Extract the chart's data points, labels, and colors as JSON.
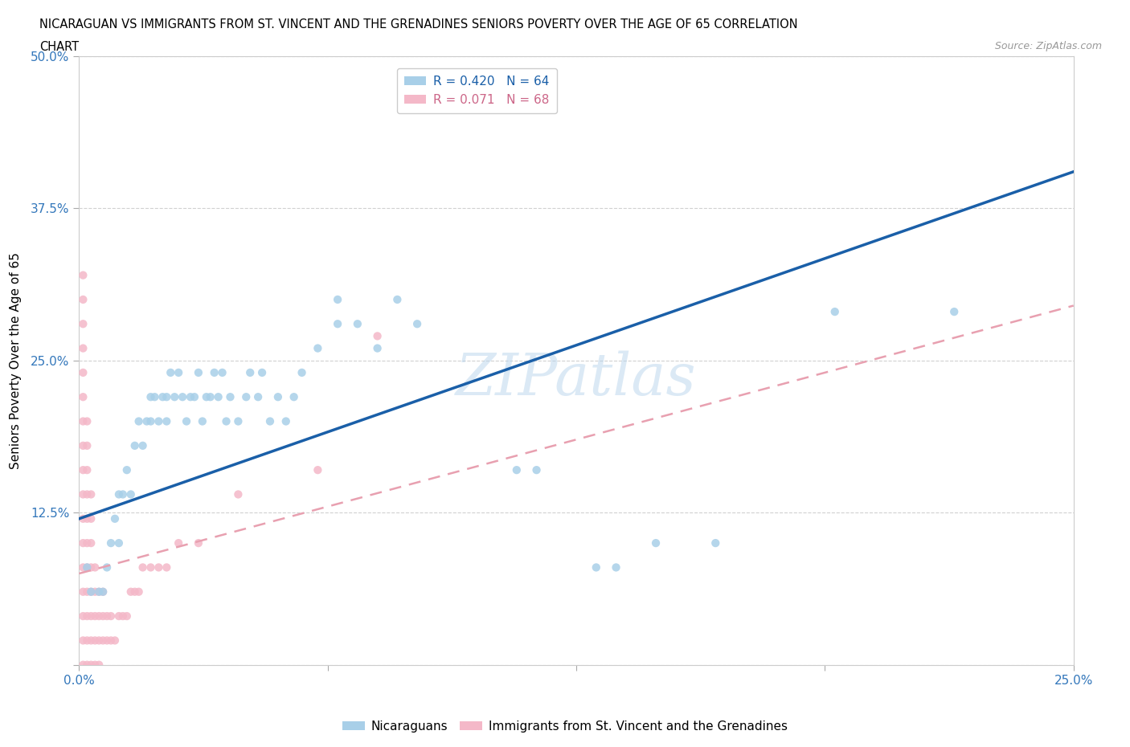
{
  "title_line1": "NICARAGUAN VS IMMIGRANTS FROM ST. VINCENT AND THE GRENADINES SENIORS POVERTY OVER THE AGE OF 65 CORRELATION",
  "title_line2": "CHART",
  "source": "Source: ZipAtlas.com",
  "ylabel": "Seniors Poverty Over the Age of 65",
  "xlim": [
    0.0,
    0.25
  ],
  "ylim": [
    0.0,
    0.5
  ],
  "xticks": [
    0.0,
    0.0625,
    0.125,
    0.1875,
    0.25
  ],
  "xticklabels": [
    "0.0%",
    "",
    "",
    "",
    "25.0%"
  ],
  "yticks": [
    0.0,
    0.125,
    0.25,
    0.375,
    0.5
  ],
  "yticklabels": [
    "",
    "12.5%",
    "25.0%",
    "37.5%",
    "50.0%"
  ],
  "blue_color": "#a8cfe8",
  "pink_color": "#f4b8c8",
  "blue_line_color": "#1a5fa8",
  "pink_line_color": "#e8a0b0",
  "R_blue": 0.42,
  "N_blue": 64,
  "R_pink": 0.071,
  "N_pink": 68,
  "legend_label_blue": "Nicaraguans",
  "legend_label_pink": "Immigrants from St. Vincent and the Grenadines",
  "blue_scatter": [
    [
      0.002,
      0.08
    ],
    [
      0.003,
      0.06
    ],
    [
      0.005,
      0.06
    ],
    [
      0.006,
      0.06
    ],
    [
      0.007,
      0.08
    ],
    [
      0.008,
      0.1
    ],
    [
      0.009,
      0.12
    ],
    [
      0.01,
      0.1
    ],
    [
      0.01,
      0.14
    ],
    [
      0.011,
      0.14
    ],
    [
      0.012,
      0.16
    ],
    [
      0.013,
      0.14
    ],
    [
      0.014,
      0.18
    ],
    [
      0.015,
      0.2
    ],
    [
      0.016,
      0.18
    ],
    [
      0.017,
      0.2
    ],
    [
      0.018,
      0.22
    ],
    [
      0.018,
      0.2
    ],
    [
      0.019,
      0.22
    ],
    [
      0.02,
      0.2
    ],
    [
      0.021,
      0.22
    ],
    [
      0.022,
      0.22
    ],
    [
      0.022,
      0.2
    ],
    [
      0.023,
      0.24
    ],
    [
      0.024,
      0.22
    ],
    [
      0.025,
      0.24
    ],
    [
      0.026,
      0.22
    ],
    [
      0.027,
      0.2
    ],
    [
      0.028,
      0.22
    ],
    [
      0.029,
      0.22
    ],
    [
      0.03,
      0.24
    ],
    [
      0.031,
      0.2
    ],
    [
      0.032,
      0.22
    ],
    [
      0.033,
      0.22
    ],
    [
      0.034,
      0.24
    ],
    [
      0.035,
      0.22
    ],
    [
      0.036,
      0.24
    ],
    [
      0.037,
      0.2
    ],
    [
      0.038,
      0.22
    ],
    [
      0.04,
      0.2
    ],
    [
      0.042,
      0.22
    ],
    [
      0.043,
      0.24
    ],
    [
      0.045,
      0.22
    ],
    [
      0.046,
      0.24
    ],
    [
      0.048,
      0.2
    ],
    [
      0.05,
      0.22
    ],
    [
      0.052,
      0.2
    ],
    [
      0.054,
      0.22
    ],
    [
      0.056,
      0.24
    ],
    [
      0.06,
      0.26
    ],
    [
      0.065,
      0.28
    ],
    [
      0.065,
      0.3
    ],
    [
      0.07,
      0.28
    ],
    [
      0.075,
      0.26
    ],
    [
      0.08,
      0.3
    ],
    [
      0.085,
      0.28
    ],
    [
      0.11,
      0.16
    ],
    [
      0.115,
      0.16
    ],
    [
      0.13,
      0.08
    ],
    [
      0.135,
      0.08
    ],
    [
      0.145,
      0.1
    ],
    [
      0.16,
      0.1
    ],
    [
      0.19,
      0.29
    ],
    [
      0.22,
      0.29
    ]
  ],
  "pink_scatter": [
    [
      0.001,
      0.0
    ],
    [
      0.001,
      0.02
    ],
    [
      0.001,
      0.04
    ],
    [
      0.001,
      0.06
    ],
    [
      0.001,
      0.08
    ],
    [
      0.001,
      0.1
    ],
    [
      0.001,
      0.12
    ],
    [
      0.001,
      0.14
    ],
    [
      0.001,
      0.16
    ],
    [
      0.001,
      0.18
    ],
    [
      0.001,
      0.2
    ],
    [
      0.001,
      0.22
    ],
    [
      0.001,
      0.24
    ],
    [
      0.001,
      0.26
    ],
    [
      0.001,
      0.28
    ],
    [
      0.001,
      0.3
    ],
    [
      0.001,
      0.32
    ],
    [
      0.002,
      0.0
    ],
    [
      0.002,
      0.02
    ],
    [
      0.002,
      0.04
    ],
    [
      0.002,
      0.06
    ],
    [
      0.002,
      0.08
    ],
    [
      0.002,
      0.1
    ],
    [
      0.002,
      0.12
    ],
    [
      0.002,
      0.14
    ],
    [
      0.002,
      0.16
    ],
    [
      0.002,
      0.18
    ],
    [
      0.002,
      0.2
    ],
    [
      0.003,
      0.0
    ],
    [
      0.003,
      0.02
    ],
    [
      0.003,
      0.04
    ],
    [
      0.003,
      0.06
    ],
    [
      0.003,
      0.08
    ],
    [
      0.003,
      0.1
    ],
    [
      0.003,
      0.12
    ],
    [
      0.003,
      0.14
    ],
    [
      0.004,
      0.0
    ],
    [
      0.004,
      0.02
    ],
    [
      0.004,
      0.04
    ],
    [
      0.004,
      0.06
    ],
    [
      0.004,
      0.08
    ],
    [
      0.005,
      0.0
    ],
    [
      0.005,
      0.02
    ],
    [
      0.005,
      0.04
    ],
    [
      0.005,
      0.06
    ],
    [
      0.006,
      0.02
    ],
    [
      0.006,
      0.04
    ],
    [
      0.006,
      0.06
    ],
    [
      0.007,
      0.02
    ],
    [
      0.007,
      0.04
    ],
    [
      0.008,
      0.02
    ],
    [
      0.008,
      0.04
    ],
    [
      0.009,
      0.02
    ],
    [
      0.01,
      0.04
    ],
    [
      0.011,
      0.04
    ],
    [
      0.012,
      0.04
    ],
    [
      0.013,
      0.06
    ],
    [
      0.014,
      0.06
    ],
    [
      0.015,
      0.06
    ],
    [
      0.016,
      0.08
    ],
    [
      0.018,
      0.08
    ],
    [
      0.02,
      0.08
    ],
    [
      0.022,
      0.08
    ],
    [
      0.025,
      0.1
    ],
    [
      0.03,
      0.1
    ],
    [
      0.04,
      0.14
    ],
    [
      0.06,
      0.16
    ],
    [
      0.075,
      0.27
    ]
  ],
  "blue_line_x0": 0.0,
  "blue_line_y0": 0.12,
  "blue_line_x1": 0.25,
  "blue_line_y1": 0.405,
  "pink_line_x0": 0.0,
  "pink_line_y0": 0.075,
  "pink_line_x1": 0.25,
  "pink_line_y1": 0.295
}
